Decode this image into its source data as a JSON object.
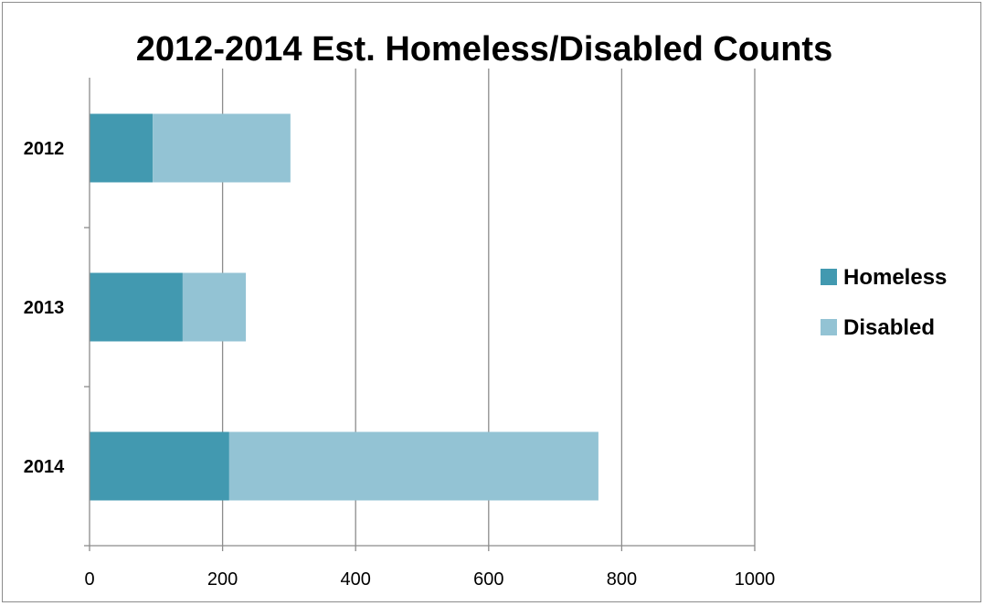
{
  "chart_data": {
    "type": "bar",
    "orientation": "horizontal",
    "stacked": true,
    "title": "2012-2014 Est. Homeless/Disabled Counts",
    "xlabel": "",
    "ylabel": "",
    "categories": [
      "2012",
      "2013",
      "2014"
    ],
    "series": [
      {
        "name": "Homeless",
        "values": [
          95,
          140,
          210
        ],
        "color": "#4299b0"
      },
      {
        "name": "Disabled",
        "values": [
          207,
          95,
          555
        ],
        "color": "#93c3d4"
      }
    ],
    "xlim": [
      0,
      1000
    ],
    "xticks": [
      "0",
      "200",
      "400",
      "600",
      "800",
      "1000"
    ],
    "grid": "vertical major gridlines",
    "legend_position": "right",
    "colors": {
      "gridline": "#8c8c8c",
      "axis": "#8c8c8c",
      "border": "#8c8c8c"
    }
  }
}
